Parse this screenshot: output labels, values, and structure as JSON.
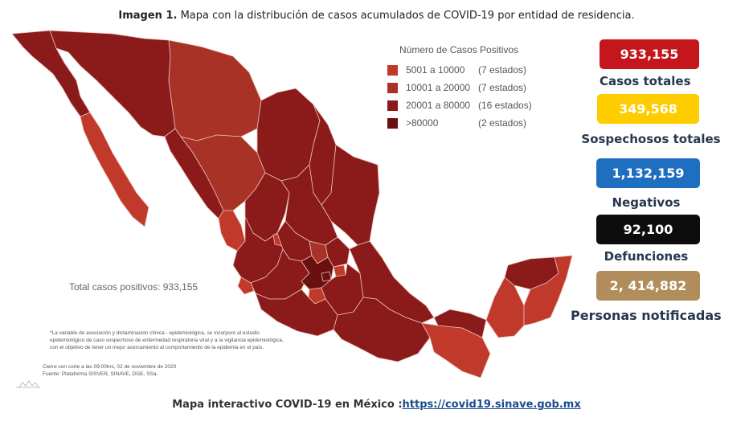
{
  "caption": {
    "bold": "Imagen 1.",
    "text": " Mapa con la distribución de casos acumulados de COVID-19 por entidad de residencia."
  },
  "legend": {
    "title": "Número de Casos Positivos",
    "items": [
      {
        "range": "5001 a  10000",
        "count": "(7 estados)",
        "color": "#c0392b"
      },
      {
        "range": "10001 a  20000",
        "count": "(7 estados)",
        "color": "#a93226"
      },
      {
        "range": "20001 a  80000",
        "count": "(16 estados)",
        "color": "#8b1a1a"
      },
      {
        "range": ">80000",
        "count": "(2 estados)",
        "color": "#6b1010"
      }
    ]
  },
  "total_label": "Total casos positivos: 933,155",
  "note": {
    "line1": "*La variable de asociación y dictaminación clínica - epidemiológica, se incorporó al estudio",
    "line2": "epidemiológico de caso sospechoso de enfermedad respiratoria viral y a la vigilancia epidemiológica,",
    "line3": "con el objetivo de tener un mejor acercamiento al comportamiento de la epidemia en el país."
  },
  "cutoff": {
    "line1": "Cierre con corte a las 09:00hrs, 02 de noviembre de 2020",
    "line2": "Fuente: Plataforma SISVER, SINAVE, DGE, SSa."
  },
  "stats": [
    {
      "value": "933,155",
      "label": "Casos totales",
      "bg": "#c4161c",
      "fg": "#ffffff"
    },
    {
      "value": "349,568",
      "label": "Sospechosos totales",
      "bg": "#ffcc00",
      "fg": "#ffffff"
    },
    {
      "value": "1,132,159",
      "label": "Negativos",
      "bg": "#1f6fc0",
      "fg": "#ffffff"
    },
    {
      "value": "92,100",
      "label": "Defunciones",
      "bg": "#0d0d0d",
      "fg": "#ffffff"
    },
    {
      "value": "2, 414,882",
      "label": "Personas notificadas",
      "bg": "#b08d5b",
      "fg": "#ffffff"
    }
  ],
  "footer": {
    "text": "Mapa interactivo COVID-19 en México :",
    "link": "https://covid19.sinave.gob.mx"
  }
}
